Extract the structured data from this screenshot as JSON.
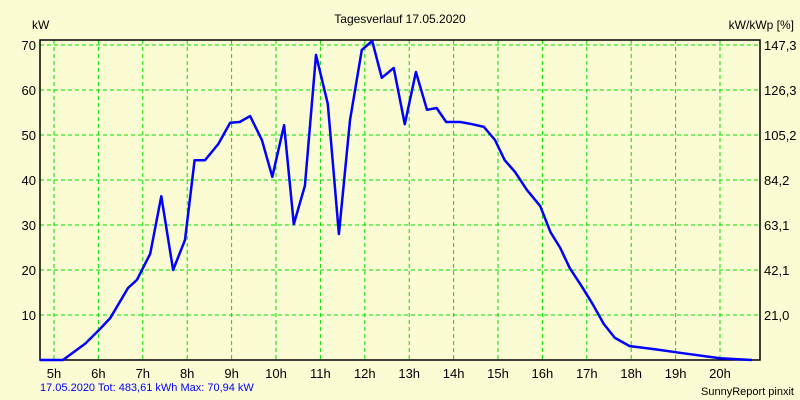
{
  "chart_data": {
    "type": "line",
    "title": "Tagesverlauf 17.05.2020",
    "ylabel": "kW",
    "ylabel_right": "kW/kWp [%]",
    "xlabel": "",
    "ylim": [
      0,
      71.1
    ],
    "xlim_hours": [
      4.68,
      20.9
    ],
    "grid": true,
    "x_ticks": [
      "5h",
      "6h",
      "7h",
      "8h",
      "9h",
      "10h",
      "11h",
      "12h",
      "13h",
      "14h",
      "15h",
      "16h",
      "17h",
      "18h",
      "19h",
      "20h"
    ],
    "y_ticks": [
      "10",
      "20",
      "30",
      "40",
      "50",
      "60",
      "70"
    ],
    "y_ticks_right": [
      "21,0",
      "42,1",
      "63,1",
      "84,2",
      "105,2",
      "126,3",
      "147,3"
    ],
    "series": [
      {
        "name": "kW",
        "color": "#0000ff",
        "time": [
          "4:41",
          "5:12",
          "5:42",
          "6:01",
          "6:16",
          "6:40",
          "6:52",
          "7:10",
          "7:25",
          "7:41",
          "7:57",
          "8:10",
          "8:24",
          "8:42",
          "8:58",
          "9:11",
          "9:25",
          "9:41",
          "9:55",
          "10:11",
          "10:24",
          "10:39",
          "10:54",
          "11:10",
          "11:25",
          "11:40",
          "11:56",
          "12:10",
          "12:23",
          "12:39",
          "12:54",
          "13:09",
          "13:24",
          "13:37",
          "13:50",
          "14:09",
          "14:25",
          "14:41",
          "14:56",
          "15:09",
          "15:23",
          "15:39",
          "15:57",
          "16:11",
          "16:24",
          "16:37",
          "16:53",
          "17:08",
          "17:23",
          "17:38",
          "17:58",
          "18:32",
          "19:06",
          "20:00",
          "20:43"
        ],
        "values": [
          0,
          0,
          3.6,
          6.7,
          9.3,
          16.0,
          17.8,
          23.6,
          36.4,
          20.0,
          26.7,
          44.4,
          44.4,
          48.0,
          52.7,
          52.9,
          54.2,
          48.9,
          40.7,
          52.2,
          30.2,
          38.7,
          67.8,
          56.9,
          28.0,
          53.3,
          68.9,
          70.9,
          62.7,
          64.9,
          52.4,
          64.0,
          55.6,
          56.0,
          52.9,
          52.9,
          52.4,
          51.8,
          48.9,
          44.4,
          41.8,
          37.8,
          34.2,
          28.4,
          24.9,
          20.4,
          16.4,
          12.4,
          8.0,
          4.9,
          3.1,
          2.4,
          1.6,
          0.4,
          0
        ]
      }
    ]
  },
  "footer": "17.05.2020 Tot: 483,61 kWh Max: 70,94 kW",
  "credit": "SunnyReport pinxit"
}
